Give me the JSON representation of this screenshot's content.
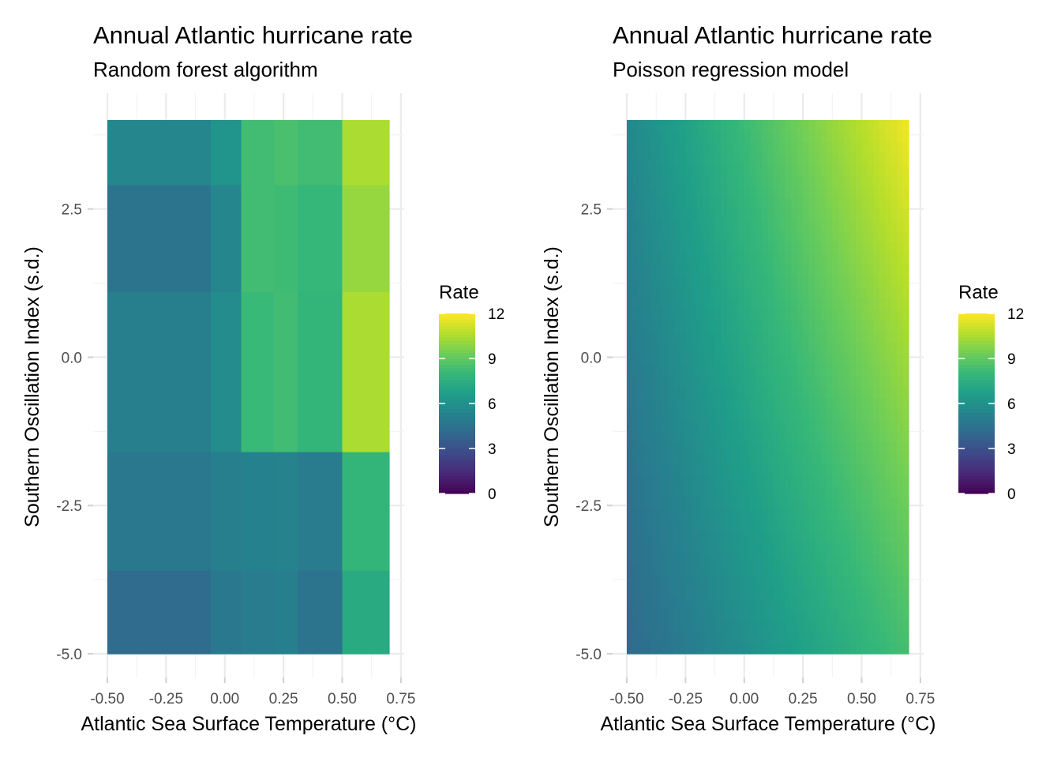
{
  "chart_data": [
    {
      "type": "heatmap",
      "title": "Annual Atlantic hurricane rate",
      "subtitle": "Random forest algorithm",
      "xlabel": "Atlantic Sea Surface Temperature (°C)",
      "ylabel": "Southern Oscillation Index (s.d.)",
      "xlim": [
        -0.5,
        0.7
      ],
      "ylim": [
        -5.0,
        4.0
      ],
      "x_ticks": [
        -0.5,
        -0.25,
        0.0,
        0.25,
        0.5,
        0.75
      ],
      "x_tick_labels": [
        "-0.50",
        "-0.25",
        "0.00",
        "0.25",
        "0.50",
        "0.75"
      ],
      "y_ticks": [
        -5.0,
        -2.5,
        0.0,
        2.5
      ],
      "y_tick_labels": [
        "-5.0",
        "-2.5",
        "0.0",
        "2.5"
      ],
      "grid": true,
      "colorscale": "viridis",
      "legend": {
        "title": "Rate",
        "position": "right",
        "range": [
          0,
          12
        ],
        "ticks": [
          0,
          3,
          6,
          9,
          12
        ],
        "tick_labels": [
          "0",
          "3",
          "6",
          "9",
          "12"
        ]
      },
      "x_breaks": [
        -0.5,
        -0.06,
        0.07,
        0.21,
        0.31,
        0.5,
        0.7
      ],
      "y_breaks": [
        4.0,
        2.9,
        1.1,
        -1.6,
        -3.6,
        -5.0
      ],
      "values": [
        [
          5.5,
          6.2,
          8.3,
          8.5,
          8.3,
          10.5
        ],
        [
          4.6,
          5.5,
          8.3,
          8.2,
          8.0,
          10.1
        ],
        [
          5.2,
          5.8,
          8.1,
          8.3,
          7.9,
          10.5
        ],
        [
          4.8,
          5.2,
          5.3,
          5.4,
          5.0,
          7.9
        ],
        [
          4.2,
          4.8,
          5.0,
          5.2,
          4.6,
          7.3
        ]
      ]
    },
    {
      "type": "heatmap",
      "title": "Annual Atlantic hurricane rate",
      "subtitle": "Poisson regression model",
      "xlabel": "Atlantic Sea Surface Temperature (°C)",
      "ylabel": "Southern Oscillation Index (s.d.)",
      "xlim": [
        -0.5,
        0.7
      ],
      "ylim": [
        -5.0,
        4.0
      ],
      "x_ticks": [
        -0.5,
        -0.25,
        0.0,
        0.25,
        0.5,
        0.75
      ],
      "x_tick_labels": [
        "-0.50",
        "-0.25",
        "0.00",
        "0.25",
        "0.50",
        "0.75"
      ],
      "y_ticks": [
        -5.0,
        -2.5,
        0.0,
        2.5
      ],
      "y_tick_labels": [
        "-5.0",
        "-2.5",
        "0.0",
        "2.5"
      ],
      "grid": true,
      "colorscale": "viridis",
      "legend": {
        "title": "Rate",
        "position": "right",
        "range": [
          0,
          12
        ],
        "ticks": [
          0,
          3,
          6,
          9,
          12
        ],
        "tick_labels": [
          "0",
          "3",
          "6",
          "9",
          "12"
        ]
      },
      "corner_values": {
        "x_min_y_max": 5.6,
        "x_max_y_max": 11.8,
        "x_min_y_min": 4.1,
        "x_max_y_min": 8.4
      }
    }
  ]
}
